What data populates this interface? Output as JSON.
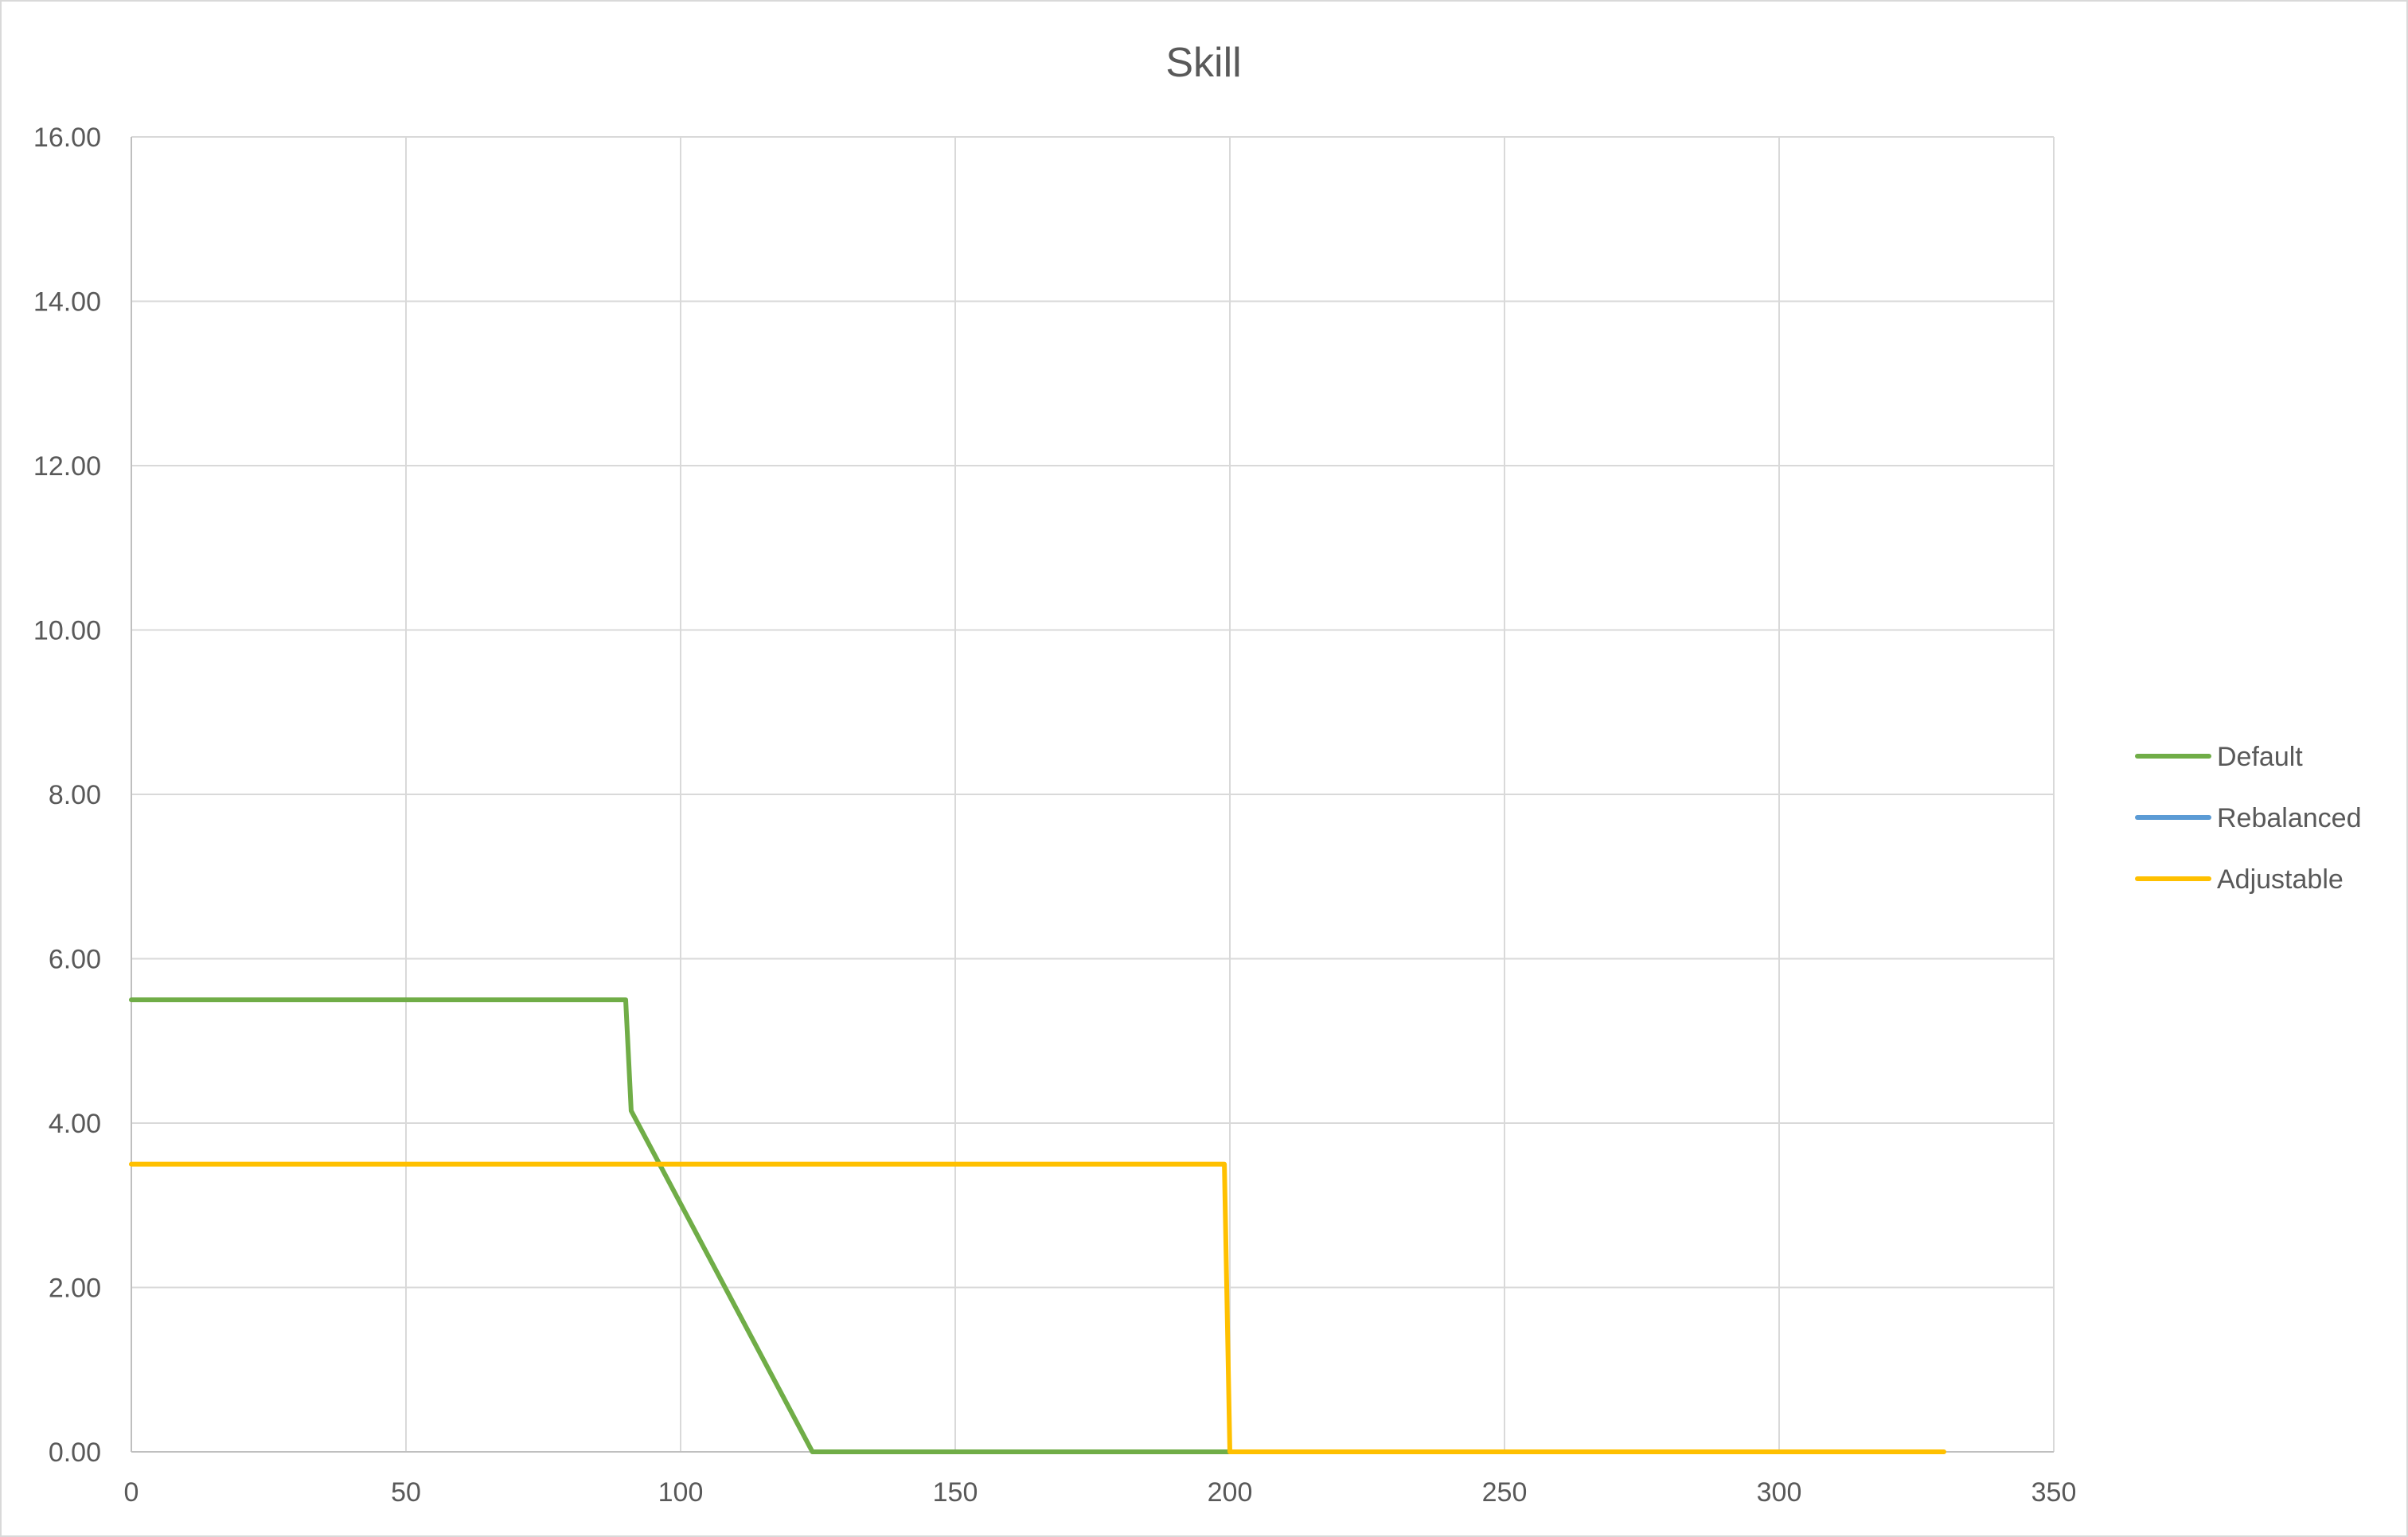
{
  "chart_data": {
    "type": "line",
    "title": "Skill",
    "xlabel": "",
    "ylabel": "",
    "xlim": [
      0,
      350
    ],
    "ylim": [
      0,
      16
    ],
    "x_ticks": [
      0,
      50,
      100,
      150,
      200,
      250,
      300,
      350
    ],
    "y_ticks": [
      0,
      2,
      4,
      6,
      8,
      10,
      12,
      14,
      16
    ],
    "x_tick_labels": [
      "0",
      "50",
      "100",
      "150",
      "200",
      "250",
      "300",
      "350"
    ],
    "y_tick_labels": [
      "0.00",
      "2.00",
      "4.00",
      "6.00",
      "8.00",
      "10.00",
      "12.00",
      "14.00",
      "16.00"
    ],
    "grid": true,
    "legend_position": "right",
    "series": [
      {
        "name": "Default",
        "color": "#70ad47",
        "x": [
          0,
          90,
          91,
          124,
          200
        ],
        "y": [
          5.5,
          5.5,
          4.15,
          0,
          0
        ]
      },
      {
        "name": "Rebalanced",
        "color": "#5b9bd5",
        "x": [],
        "y": []
      },
      {
        "name": "Adjustable",
        "color": "#ffc000",
        "x": [
          0,
          199,
          200,
          330
        ],
        "y": [
          3.5,
          3.5,
          0,
          0
        ]
      }
    ]
  }
}
